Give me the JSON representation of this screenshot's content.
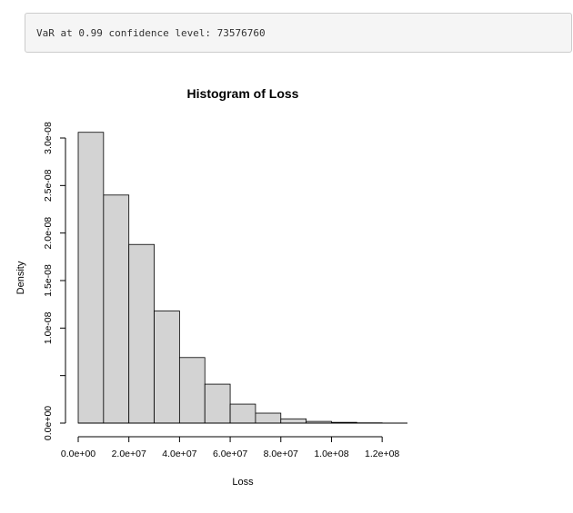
{
  "output": {
    "text": "VaR at 0.99 confidence level: 73576760"
  },
  "colors": {
    "bar_fill": "#d3d3d3",
    "bar_stroke": "#000000",
    "output_bg": "#f5f5f5",
    "output_border": "#cccccc"
  },
  "chart_data": {
    "type": "bar",
    "title": "Histogram of Loss",
    "xlabel": "Loss",
    "ylabel": "Density",
    "bin_edges": [
      0,
      10000000,
      20000000,
      30000000,
      40000000,
      50000000,
      60000000,
      70000000,
      80000000,
      90000000,
      100000000,
      110000000,
      120000000
    ],
    "values": [
      3.06e-08,
      2.4e-08,
      1.88e-08,
      1.18e-08,
      6.9e-09,
      4.1e-09,
      2e-09,
      1.05e-09,
      4.5e-10,
      1.8e-10,
      8e-11,
      3e-11
    ],
    "xlim": [
      0,
      130000000
    ],
    "ylim": [
      0,
      3e-08
    ],
    "x_ticks": [
      0,
      20000000,
      40000000,
      60000000,
      80000000,
      100000000,
      120000000
    ],
    "x_tick_labels": [
      "0.0e+00",
      "2.0e+07",
      "4.0e+07",
      "6.0e+07",
      "8.0e+07",
      "1.0e+08",
      "1.2e+08"
    ],
    "y_ticks": [
      0,
      5e-09,
      1e-08,
      1.5e-08,
      2e-08,
      2.5e-08,
      3e-08
    ],
    "y_tick_labels": [
      "0.0e+00",
      "",
      "1.0e-08",
      "1.5e-08",
      "2.0e-08",
      "2.5e-08",
      "3.0e-08"
    ],
    "grid": false,
    "legend": "none"
  }
}
